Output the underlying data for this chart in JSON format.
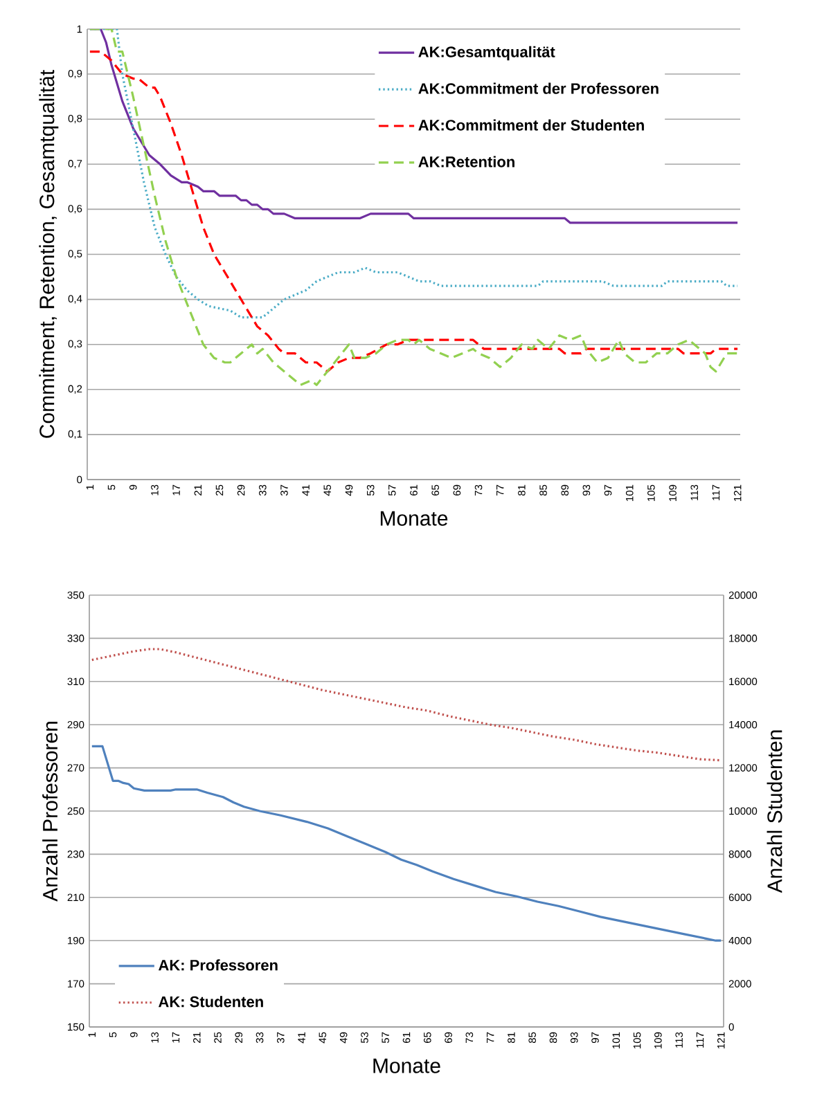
{
  "chart_data": [
    {
      "type": "line",
      "ylabel": "Commitment, Retention, Gesamtqualität",
      "xlabel": "Monate",
      "xlim": [
        0.5,
        121.5
      ],
      "xticks": [
        1,
        5,
        9,
        13,
        17,
        21,
        25,
        29,
        33,
        37,
        41,
        45,
        49,
        53,
        57,
        61,
        65,
        69,
        73,
        77,
        81,
        85,
        89,
        93,
        97,
        101,
        105,
        109,
        113,
        117,
        121
      ],
      "ylim": [
        0,
        1
      ],
      "yticks": [
        0,
        {
          "value": 0.1,
          "label": "0,1"
        },
        {
          "value": 0.2,
          "label": "0,2"
        },
        {
          "value": 0.3,
          "label": "0,3"
        },
        {
          "value": 0.4,
          "label": "0,4"
        },
        {
          "value": 0.5,
          "label": "0,5"
        },
        {
          "value": 0.6,
          "label": "0,6"
        },
        {
          "value": 0.7,
          "label": "0,7"
        },
        {
          "value": 0.8,
          "label": "0,8"
        },
        {
          "value": 0.9,
          "label": "0,9"
        },
        1
      ],
      "grid": "y",
      "legend": "top right",
      "series": [
        {
          "name": "AK:Gesamtqualität",
          "color": "#7030a0",
          "line_style": "solid",
          "x": [
            1,
            3,
            4,
            5,
            7,
            9,
            10,
            12,
            14,
            16,
            18,
            19,
            20,
            21,
            22,
            24,
            25,
            28,
            29,
            30,
            31,
            32,
            33,
            34,
            35,
            37,
            39,
            51,
            53,
            60,
            61,
            89,
            90,
            121
          ],
          "values": [
            1,
            1,
            0.97,
            0.92,
            0.84,
            0.78,
            0.76,
            0.72,
            0.7,
            0.675,
            0.66,
            0.66,
            0.655,
            0.65,
            0.64,
            0.64,
            0.63,
            0.63,
            0.62,
            0.62,
            0.61,
            0.61,
            0.6,
            0.6,
            0.59,
            0.59,
            0.58,
            0.58,
            0.59,
            0.59,
            0.58,
            0.58,
            0.57,
            0.57
          ]
        },
        {
          "name": "AK:Commitment der Professoren",
          "color": "#4bacc6",
          "line_style": "dotted",
          "x": [
            1,
            6,
            7,
            9,
            11,
            13,
            15,
            17,
            19,
            21,
            23,
            25,
            27,
            29,
            31,
            33,
            35,
            37,
            39,
            41,
            43,
            45,
            47,
            50,
            52,
            54,
            58,
            60,
            62,
            64,
            66,
            84,
            85,
            96,
            98,
            107,
            108,
            118,
            119,
            121
          ],
          "values": [
            1,
            1,
            0.9,
            0.78,
            0.66,
            0.56,
            0.5,
            0.45,
            0.42,
            0.4,
            0.385,
            0.38,
            0.375,
            0.36,
            0.36,
            0.36,
            0.38,
            0.4,
            0.41,
            0.42,
            0.44,
            0.45,
            0.46,
            0.46,
            0.47,
            0.46,
            0.46,
            0.45,
            0.44,
            0.44,
            0.43,
            0.43,
            0.44,
            0.44,
            0.43,
            0.43,
            0.44,
            0.44,
            0.43,
            0.43
          ]
        },
        {
          "name": "AK:Commitment der Studenten",
          "color": "#ff0000",
          "line_style": "dashed",
          "x": [
            1,
            3,
            5,
            7,
            9,
            10,
            12,
            13,
            14,
            16,
            18,
            20,
            22,
            24,
            26,
            28,
            30,
            32,
            34,
            36,
            37,
            39,
            41,
            43,
            45,
            47,
            49,
            51,
            53,
            56,
            58,
            60,
            72,
            74,
            88,
            89,
            92,
            93,
            110,
            111,
            116,
            117,
            121
          ],
          "values": [
            0.95,
            0.95,
            0.93,
            0.9,
            0.89,
            0.89,
            0.87,
            0.87,
            0.85,
            0.79,
            0.72,
            0.64,
            0.56,
            0.5,
            0.46,
            0.42,
            0.38,
            0.34,
            0.32,
            0.29,
            0.28,
            0.28,
            0.26,
            0.26,
            0.24,
            0.26,
            0.27,
            0.27,
            0.28,
            0.3,
            0.3,
            0.31,
            0.31,
            0.29,
            0.29,
            0.28,
            0.28,
            0.29,
            0.29,
            0.28,
            0.28,
            0.29,
            0.29
          ]
        },
        {
          "name": "AK:Retention",
          "color": "#92d050",
          "line_style": "dashed",
          "x": [
            1,
            5,
            6,
            7,
            9,
            11,
            13,
            15,
            17,
            19,
            21,
            22,
            24,
            26,
            27,
            29,
            31,
            32,
            33,
            35,
            37,
            38,
            40,
            42,
            43,
            45,
            47,
            49,
            50,
            52,
            54,
            56,
            58,
            60,
            61,
            62,
            64,
            66,
            68,
            70,
            72,
            73,
            75,
            77,
            79,
            81,
            83,
            84,
            86,
            88,
            90,
            92,
            93,
            95,
            97,
            99,
            100,
            102,
            104,
            106,
            108,
            110,
            112,
            113,
            115,
            116,
            117,
            119,
            121
          ],
          "values": [
            1,
            1,
            0.95,
            0.95,
            0.85,
            0.74,
            0.63,
            0.53,
            0.45,
            0.39,
            0.33,
            0.3,
            0.27,
            0.26,
            0.26,
            0.28,
            0.3,
            0.28,
            0.29,
            0.26,
            0.24,
            0.23,
            0.21,
            0.22,
            0.21,
            0.24,
            0.27,
            0.3,
            0.27,
            0.27,
            0.28,
            0.3,
            0.31,
            0.31,
            0.3,
            0.31,
            0.29,
            0.28,
            0.27,
            0.28,
            0.29,
            0.28,
            0.27,
            0.25,
            0.27,
            0.3,
            0.29,
            0.31,
            0.29,
            0.32,
            0.31,
            0.32,
            0.29,
            0.26,
            0.27,
            0.31,
            0.28,
            0.26,
            0.26,
            0.28,
            0.28,
            0.3,
            0.31,
            0.3,
            0.28,
            0.25,
            0.24,
            0.28,
            0.28
          ]
        }
      ]
    },
    {
      "type": "line",
      "ylabel": "Anzahl Professoren",
      "y2label": "Anzahl Studenten",
      "xlabel": "Monate",
      "xlim": [
        0.5,
        121.5
      ],
      "xticks": [
        1,
        5,
        9,
        13,
        17,
        21,
        25,
        29,
        33,
        37,
        41,
        45,
        49,
        53,
        57,
        61,
        65,
        69,
        73,
        77,
        81,
        85,
        89,
        93,
        97,
        101,
        105,
        109,
        113,
        117,
        121
      ],
      "ylim": [
        150,
        350
      ],
      "yticks": [
        150,
        170,
        190,
        210,
        230,
        250,
        270,
        290,
        310,
        330,
        350
      ],
      "y2lim": [
        0,
        20000
      ],
      "y2ticks": [
        0,
        2000,
        4000,
        6000,
        8000,
        10000,
        12000,
        14000,
        16000,
        18000,
        20000
      ],
      "grid": "y",
      "legend": "bottom left",
      "series": [
        {
          "name": "AK: Professoren",
          "color": "#4f81bd",
          "line_style": "solid",
          "x": [
            1,
            3,
            5,
            6,
            7,
            8,
            9,
            11,
            16,
            17,
            21,
            23,
            26,
            28,
            30,
            33,
            37,
            42,
            46,
            50,
            53,
            57,
            60,
            63,
            66,
            70,
            74,
            78,
            82,
            86,
            90,
            94,
            98,
            102,
            106,
            110,
            114,
            118,
            120,
            121
          ],
          "values": [
            280,
            280,
            264,
            264,
            263,
            262.5,
            260.5,
            259.5,
            259.5,
            260,
            260,
            258.5,
            256.5,
            254,
            252,
            250,
            248,
            245,
            242,
            238,
            235,
            231,
            227.5,
            225,
            222,
            218.5,
            215.5,
            212.5,
            210.5,
            208,
            206,
            203.5,
            201,
            199,
            197,
            195,
            193,
            191,
            190,
            190
          ]
        },
        {
          "name": "AK: Studenten",
          "color": "#c0504d",
          "line_style": "dotted",
          "axis": "y2",
          "x": [
            1,
            5,
            9,
            12,
            14,
            17,
            21,
            25,
            29,
            33,
            37,
            41,
            45,
            49,
            53,
            57,
            61,
            65,
            69,
            73,
            77,
            81,
            85,
            89,
            93,
            97,
            101,
            105,
            109,
            113,
            117,
            121
          ],
          "values": [
            17000,
            17200,
            17400,
            17500,
            17500,
            17350,
            17100,
            16850,
            16600,
            16350,
            16100,
            15850,
            15600,
            15400,
            15200,
            15000,
            14800,
            14650,
            14400,
            14200,
            14000,
            13850,
            13650,
            13450,
            13300,
            13100,
            12950,
            12800,
            12700,
            12550,
            12400,
            12350
          ]
        }
      ]
    }
  ]
}
